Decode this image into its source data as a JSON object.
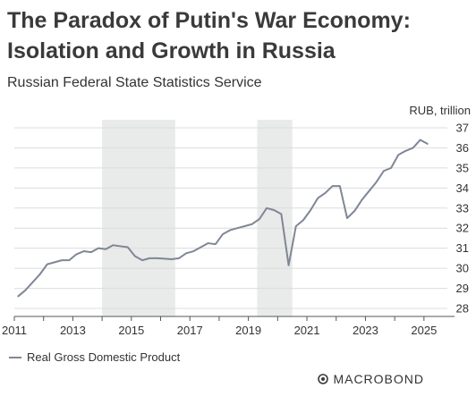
{
  "header": {
    "title_line1": "The Paradox of Putin's War Economy:",
    "title_line2": "Isolation and Growth in Russia",
    "subtitle": "Russian Federal State Statistics Service"
  },
  "footer": {
    "logo_text": "MACROBOND"
  },
  "chart_data": {
    "type": "line",
    "unit_label": "RUB, trillion",
    "xlim": [
      2011.0,
      2025.8
    ],
    "ylim": [
      27.6,
      37.4
    ],
    "x_ticks": [
      2011,
      2013,
      2015,
      2017,
      2019,
      2021,
      2023,
      2025
    ],
    "y_ticks": [
      28,
      29,
      30,
      31,
      32,
      33,
      34,
      35,
      36,
      37
    ],
    "y_axis_side": "right",
    "grid": "horizontal",
    "legend_position": "bottom-left",
    "shaded_periods": [
      {
        "start": 2014.0,
        "end": 2016.5
      },
      {
        "start": 2019.3,
        "end": 2020.5
      }
    ],
    "series": [
      {
        "name": "Real Gross Domestic Product",
        "color": "#7f8795",
        "x": [
          2011.125,
          2011.375,
          2011.625,
          2011.875,
          2012.125,
          2012.375,
          2012.625,
          2012.875,
          2013.125,
          2013.375,
          2013.625,
          2013.875,
          2014.125,
          2014.375,
          2014.625,
          2014.875,
          2015.125,
          2015.375,
          2015.625,
          2015.875,
          2016.125,
          2016.375,
          2016.625,
          2016.875,
          2017.125,
          2017.375,
          2017.625,
          2017.875,
          2018.125,
          2018.375,
          2018.625,
          2018.875,
          2019.125,
          2019.375,
          2019.625,
          2019.875,
          2020.125,
          2020.375,
          2020.625,
          2020.875,
          2021.125,
          2021.375,
          2021.625,
          2021.875,
          2022.125,
          2022.375,
          2022.625,
          2022.875,
          2023.125,
          2023.375,
          2023.625,
          2023.875,
          2024.125,
          2024.375,
          2024.625,
          2024.875,
          2025.125
        ],
        "values": [
          28.6,
          28.9,
          29.3,
          29.7,
          30.2,
          30.3,
          30.4,
          30.4,
          30.7,
          30.85,
          30.8,
          31.0,
          30.95,
          31.15,
          31.1,
          31.05,
          30.6,
          30.4,
          30.5,
          30.5,
          30.48,
          30.45,
          30.5,
          30.75,
          30.85,
          31.05,
          31.25,
          31.2,
          31.7,
          31.9,
          32.0,
          32.1,
          32.2,
          32.45,
          33.0,
          32.9,
          32.7,
          30.15,
          32.1,
          32.4,
          32.9,
          33.5,
          33.75,
          34.1,
          34.1,
          32.5,
          32.85,
          33.4,
          33.85,
          34.3,
          34.85,
          35.0,
          35.65,
          35.85,
          36.0,
          36.4,
          36.2
        ]
      }
    ]
  }
}
